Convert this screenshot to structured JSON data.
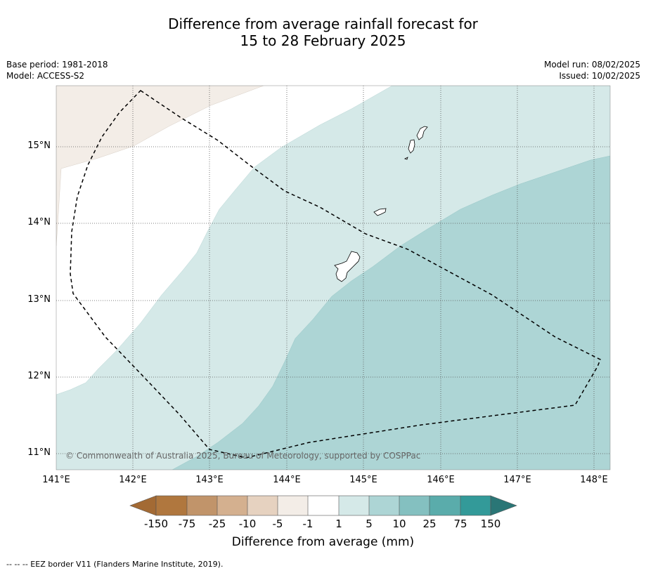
{
  "title": {
    "line1": "Difference from average rainfall forecast for",
    "line2": "15 to 28 February 2025"
  },
  "meta": {
    "base_period": "Base period: 1981-2018",
    "model": "Model: ACCESS-S2",
    "model_run": "Model run: 08/02/2025",
    "issued": "Issued: 10/02/2025"
  },
  "map": {
    "lat_labels": [
      "15°N",
      "14°N",
      "13°N",
      "12°N",
      "11°N"
    ],
    "lon_labels": [
      "141°E",
      "142°E",
      "143°E",
      "144°E",
      "145°E",
      "146°E",
      "147°E",
      "148°E"
    ],
    "copyright": "© Commonwealth of Australia 2025, Bureau of Meteorology, supported by COSPPac",
    "category_colors": {
      "below_-1_to_-5": "#f3ede7",
      "-1_to_1": "#ffffff",
      "1_to_5": "#d5e9e8",
      "5_to_10": "#add5d5"
    }
  },
  "colorbar": {
    "ticks": [
      "-150",
      "-75",
      "-25",
      "-10",
      "-5",
      "-1",
      "1",
      "5",
      "10",
      "25",
      "75",
      "150"
    ],
    "colors": [
      "#a36a34",
      "#b0773e",
      "#c1946a",
      "#d4b08f",
      "#e6d2c0",
      "#f3ede7",
      "#ffffff",
      "#d5e9e8",
      "#add5d5",
      "#84c0c0",
      "#5aacab",
      "#339a99",
      "#2a7676"
    ],
    "label": "Difference from average (mm)"
  },
  "footnote": "--  --  -- EEZ border V11 (Flanders Marine Institute, 2019)."
}
